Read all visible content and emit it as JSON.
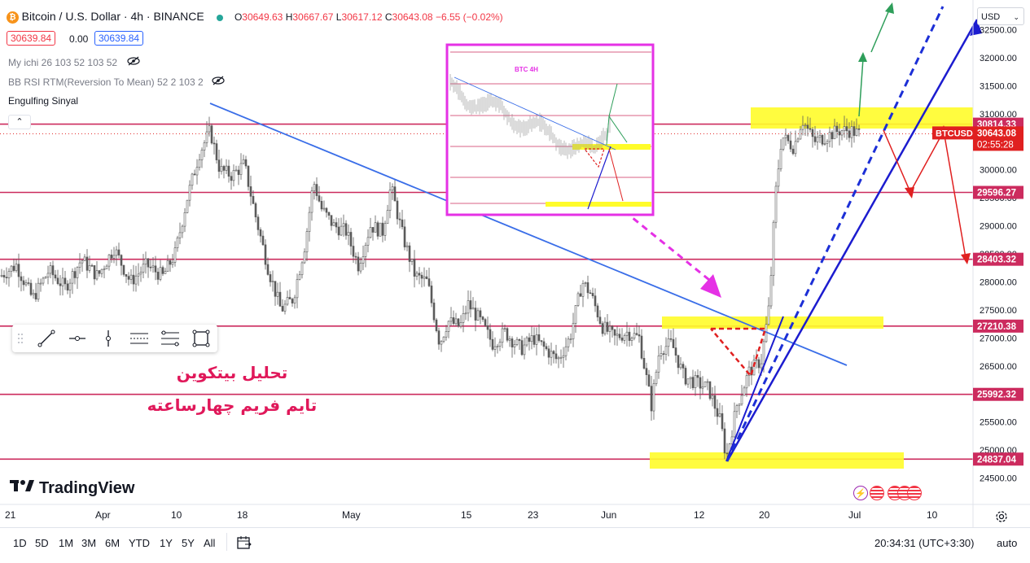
{
  "header": {
    "symbol_title": "Bitcoin / U.S. Dollar · 4h · BINANCE",
    "ohlc": {
      "o_label": "O",
      "o": "30649.63",
      "h_label": "H",
      "h": "30667.67",
      "l_label": "L",
      "l": "30617.12",
      "c_label": "C",
      "c": "30643.08",
      "change": "−6.55 (−0.02%)"
    },
    "sell_price": "30639.84",
    "spread": "0.00",
    "buy_price": "30639.84"
  },
  "indicators": [
    {
      "label": "My ichi 26 103 52 103 52"
    },
    {
      "label": "BB RSI RTM(Reversion To Mean) 52 2 103 2"
    },
    {
      "label": "Engulfing Sinyal"
    }
  ],
  "currency_select": "USD",
  "chart_data": {
    "type": "candlestick",
    "symbol": "BTCUSD",
    "timeframe": "4h",
    "ylim": [
      24400,
      32700
    ],
    "y_ticks": [
      24500,
      25000,
      25500,
      26000,
      26500,
      27000,
      27500,
      28000,
      28500,
      29000,
      29500,
      30000,
      30500,
      31000,
      31500,
      32000,
      32500
    ],
    "y_tick_labels": [
      "24500.00",
      "25000.00",
      "25500.00",
      "26000.00",
      "26500.00",
      "27000.00",
      "27500.00",
      "28000.00",
      "28500.00",
      "29000.00",
      "29500.00",
      "30000.00",
      "30500.00",
      "31000.00",
      "31500.00",
      "32000.00",
      "32500.00"
    ],
    "x_tick_labels": [
      "21",
      "Apr",
      "10",
      "18",
      "May",
      "15",
      "23",
      "Jun",
      "12",
      "20",
      "Jul",
      "10"
    ],
    "price_path": [
      [
        0,
        28100
      ],
      [
        20,
        28300
      ],
      [
        40,
        27700
      ],
      [
        60,
        28200
      ],
      [
        80,
        27900
      ],
      [
        100,
        28400
      ],
      [
        120,
        28100
      ],
      [
        140,
        28600
      ],
      [
        160,
        28000
      ],
      [
        180,
        28300
      ],
      [
        200,
        28100
      ],
      [
        215,
        28500
      ],
      [
        230,
        29500
      ],
      [
        245,
        30300
      ],
      [
        258,
        30700
      ],
      [
        270,
        30000
      ],
      [
        285,
        29900
      ],
      [
        300,
        30100
      ],
      [
        315,
        29100
      ],
      [
        330,
        28200
      ],
      [
        345,
        27500
      ],
      [
        360,
        27700
      ],
      [
        375,
        28700
      ],
      [
        385,
        29800
      ],
      [
        395,
        29300
      ],
      [
        410,
        29000
      ],
      [
        425,
        28900
      ],
      [
        440,
        28300
      ],
      [
        455,
        29000
      ],
      [
        470,
        28900
      ],
      [
        480,
        29700
      ],
      [
        495,
        28800
      ],
      [
        510,
        28100
      ],
      [
        525,
        28000
      ],
      [
        540,
        26900
      ],
      [
        550,
        27300
      ],
      [
        565,
        27200
      ],
      [
        575,
        27600
      ],
      [
        590,
        27300
      ],
      [
        605,
        26900
      ],
      [
        620,
        27100
      ],
      [
        640,
        26800
      ],
      [
        655,
        27000
      ],
      [
        670,
        26800
      ],
      [
        685,
        26600
      ],
      [
        700,
        27000
      ],
      [
        715,
        28000
      ],
      [
        725,
        27800
      ],
      [
        740,
        27200
      ],
      [
        755,
        27000
      ],
      [
        770,
        27100
      ],
      [
        785,
        27000
      ],
      [
        800,
        25800
      ],
      [
        810,
        26800
      ],
      [
        825,
        26900
      ],
      [
        840,
        26300
      ],
      [
        855,
        26200
      ],
      [
        870,
        26100
      ],
      [
        885,
        25500
      ],
      [
        892,
        24850
      ],
      [
        905,
        25800
      ],
      [
        920,
        26400
      ],
      [
        935,
        26600
      ],
      [
        945,
        27600
      ],
      [
        952,
        29500
      ],
      [
        960,
        30600
      ],
      [
        975,
        30400
      ],
      [
        985,
        30900
      ],
      [
        1000,
        30500
      ],
      [
        1015,
        30600
      ],
      [
        1030,
        30700
      ],
      [
        1045,
        30700
      ],
      [
        1055,
        30643
      ]
    ],
    "levels": [
      {
        "price": "30814.33",
        "color": "#cc2b5e"
      },
      {
        "price": "29596.27",
        "color": "#cc2b5e"
      },
      {
        "price": "28403.32",
        "color": "#cc2b5e"
      },
      {
        "price": "27210.38",
        "color": "#cc2b5e"
      },
      {
        "price": "25992.32",
        "color": "#cc2b5e"
      },
      {
        "price": "24837.04",
        "color": "#cc2b5e"
      }
    ],
    "current_price": {
      "label": "BTCUSD",
      "value": "30643.08",
      "countdown": "02:55:28",
      "color": "#f23645"
    }
  },
  "annotations": {
    "persian_line1": "تحلیل بیتکوین",
    "persian_line2": "تایم فریم چهارساعته",
    "inset_title": "BTC  4H"
  },
  "colors": {
    "level": "#cc2b5e",
    "candle": "#5b5b5b",
    "trend": "#2962ff",
    "blue_dash": "#1c2fd6",
    "green": "#2e9e5a",
    "red": "#e02020",
    "magenta": "#e531e5",
    "yellow": "#fffc2a"
  },
  "tradingview_logo": "TradingView",
  "time_axis": {
    "settings_icon": "gear-icon"
  },
  "bottom_bar": {
    "ranges": [
      "1D",
      "5D",
      "1M",
      "3M",
      "6M",
      "YTD",
      "1Y",
      "5Y",
      "All"
    ],
    "clock": "20:34:31 (UTC+3:30)",
    "auto": "auto"
  }
}
